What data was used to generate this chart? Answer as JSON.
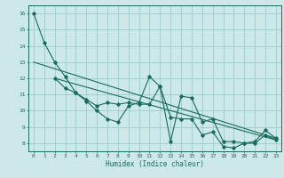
{
  "background_color": "#cce8e8",
  "grid_color": "#99cccc",
  "line_color": "#1a6b5a",
  "x_label": "Humidex (Indice chaleur)",
  "xlim": [
    -0.5,
    23.5
  ],
  "ylim": [
    7.5,
    16.5
  ],
  "yticks": [
    8,
    9,
    10,
    11,
    12,
    13,
    14,
    15,
    16
  ],
  "xticks": [
    0,
    1,
    2,
    3,
    4,
    5,
    6,
    7,
    8,
    9,
    10,
    11,
    12,
    13,
    14,
    15,
    16,
    17,
    18,
    19,
    20,
    21,
    22,
    23
  ],
  "series1_x": [
    0,
    1,
    2,
    3,
    4,
    5,
    6,
    7,
    8,
    9,
    10,
    11,
    12,
    13,
    14,
    15,
    16,
    17,
    18,
    19,
    20,
    21,
    22,
    23
  ],
  "series1_y": [
    16.0,
    14.2,
    13.0,
    12.1,
    11.1,
    10.6,
    10.0,
    9.5,
    9.3,
    10.3,
    10.5,
    12.1,
    11.5,
    8.1,
    10.9,
    10.8,
    9.3,
    9.5,
    8.1,
    8.1,
    8.0,
    8.1,
    8.8,
    8.3
  ],
  "series2_x": [
    2,
    3,
    4,
    5,
    6,
    7,
    8,
    9,
    10,
    11,
    12,
    13,
    14,
    15,
    16,
    17,
    18,
    19,
    20,
    21,
    22,
    23
  ],
  "series2_y": [
    12.0,
    11.4,
    11.1,
    10.7,
    10.3,
    10.5,
    10.4,
    10.5,
    10.4,
    10.4,
    11.5,
    9.6,
    9.5,
    9.5,
    8.5,
    8.7,
    7.8,
    7.7,
    8.0,
    8.0,
    8.5,
    8.2
  ],
  "trend1_x": [
    0,
    23
  ],
  "trend1_y": [
    13.0,
    8.3
  ],
  "trend2_x": [
    2,
    23
  ],
  "trend2_y": [
    12.0,
    8.2
  ]
}
